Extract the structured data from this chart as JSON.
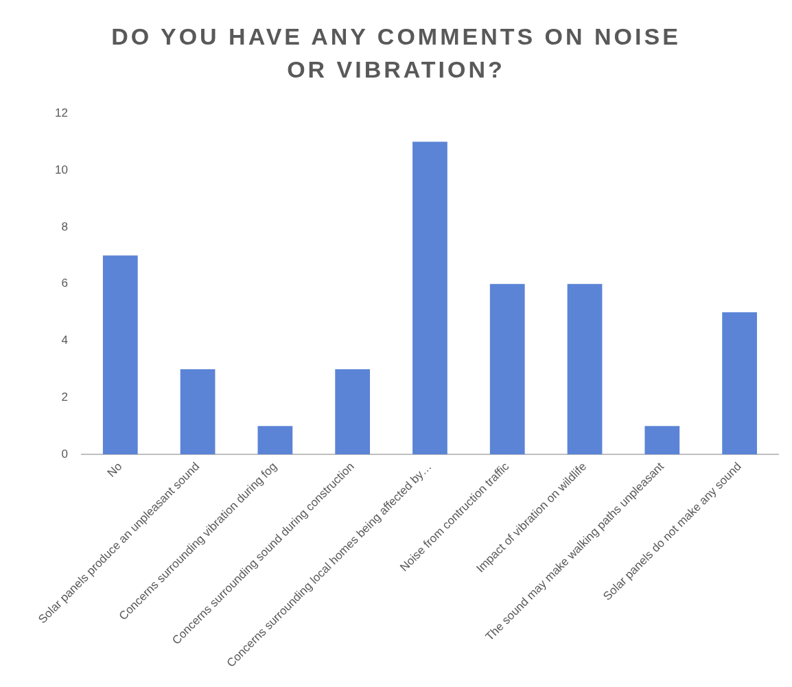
{
  "chart_data": {
    "type": "bar",
    "title": "DO YOU HAVE ANY COMMENTS ON NOISE OR VIBRATION?",
    "categories": [
      "No",
      "Solar panels produce an unpleasant sound",
      "Concerns surrounding vibration during fog",
      "Concerns surrounding sound during construction",
      "Concerns surrounding local homes being affected by…",
      "Noise from contruction traffic",
      "Impact of vibration on wildlife",
      "The sound may make walking paths unpleasant",
      "Solar panels do not make any sound"
    ],
    "values": [
      7,
      3,
      1,
      3,
      11,
      6,
      6,
      1,
      5
    ],
    "color": "#5b84d6",
    "ylim": [
      0,
      12
    ],
    "yticks": [
      0,
      2,
      4,
      6,
      8,
      10,
      12
    ],
    "grid": false,
    "legend": false
  }
}
